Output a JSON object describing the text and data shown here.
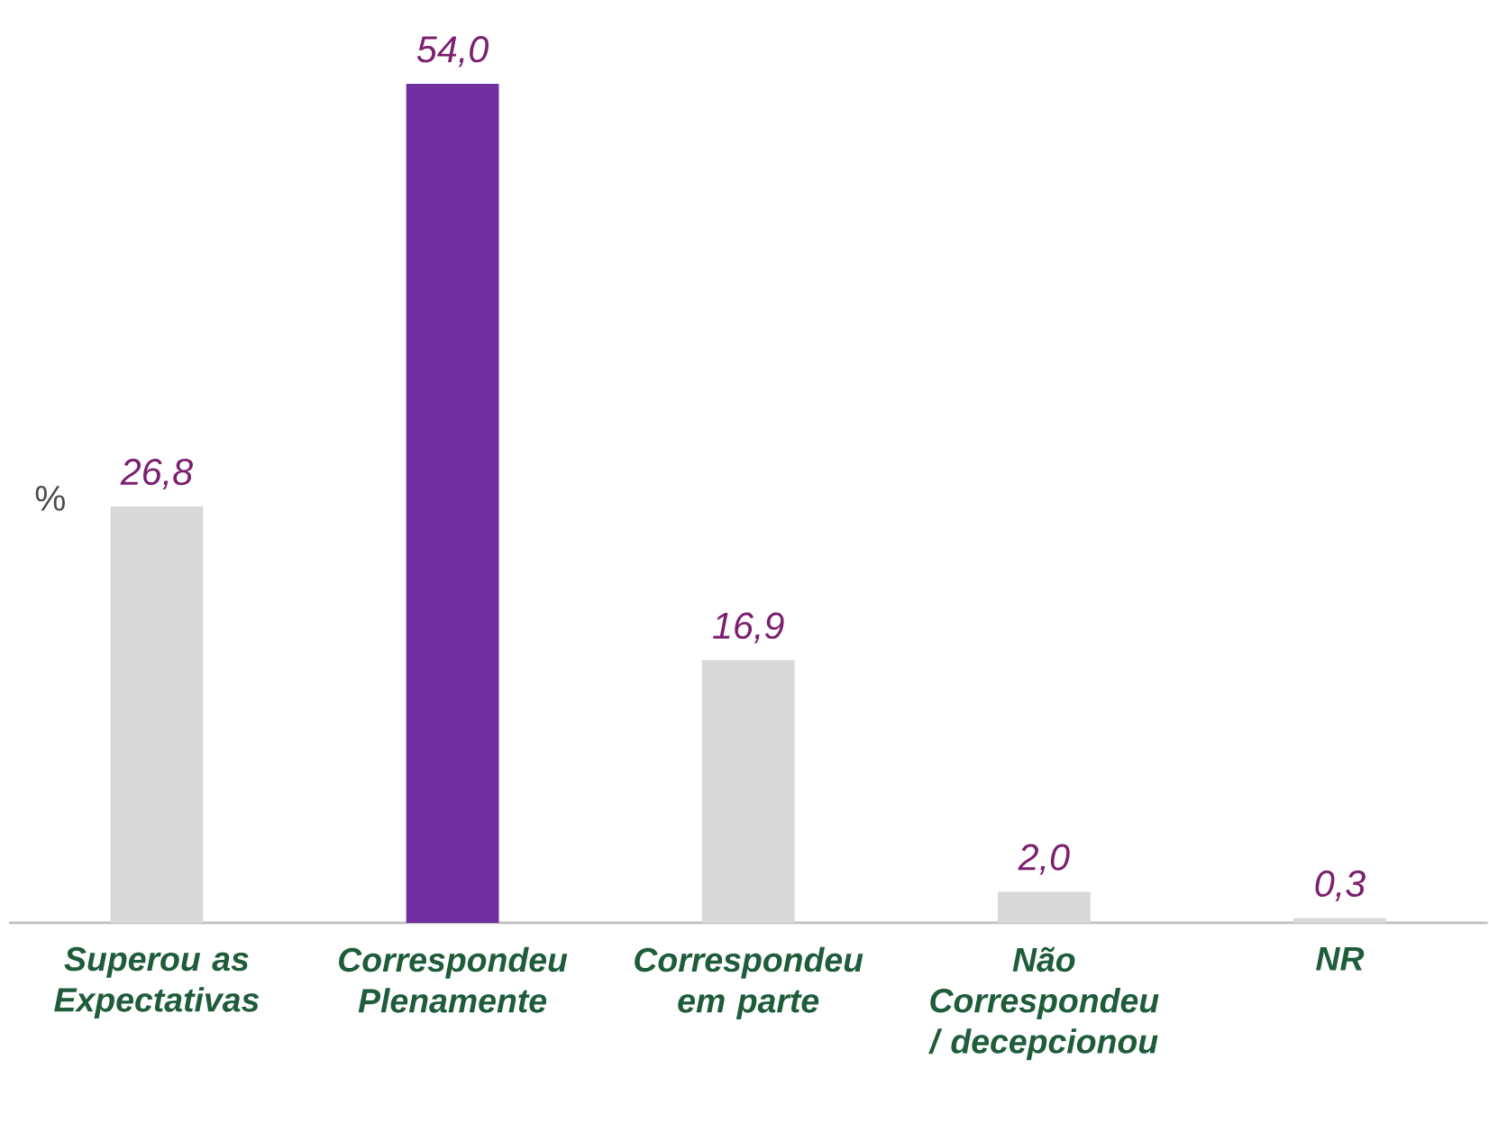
{
  "chart_data": {
    "type": "bar",
    "ylabel": "%",
    "categories": [
      "Superou as Expectativas",
      "Correspondeu Plenamente",
      "Correspondeu em parte",
      "Não Correspondeu / decepcionou",
      "NR"
    ],
    "values": [
      26.8,
      54.0,
      16.9,
      2.0,
      0.3
    ],
    "colors": [
      "#d9d9d9",
      "#7030a0",
      "#d9d9d9",
      "#d9d9d9",
      "#d9d9d9"
    ],
    "value_labels": [
      "26,8",
      "54,0",
      "16,9",
      "2,0",
      "0,3"
    ]
  }
}
